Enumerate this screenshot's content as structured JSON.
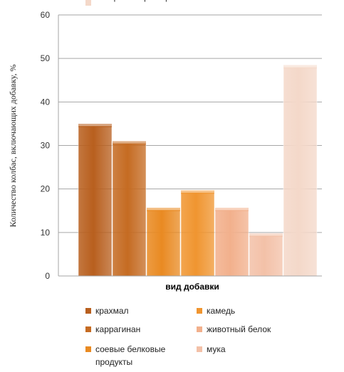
{
  "chart_data": {
    "type": "bar",
    "xlabel": "вид добавки",
    "ylabel": "Количество колбас, включающих добавку, %",
    "ylim": [
      0,
      60
    ],
    "yticks": [
      0,
      10,
      20,
      30,
      40,
      50,
      60
    ],
    "grid": true,
    "legend_position": "bottom",
    "series": [
      {
        "name": "крахмал",
        "value": 34.5,
        "color": "#b85f1e"
      },
      {
        "name": "каррагинан",
        "value": 30.5,
        "color": "#c56b22"
      },
      {
        "name": "соевые белковые продукты",
        "value": 15.2,
        "color": "#e98a22"
      },
      {
        "name": "камедь",
        "value": 19.2,
        "color": "#f09530"
      },
      {
        "name": "животный белок",
        "value": 15.2,
        "color": "#f2b08c"
      },
      {
        "name": "мука",
        "value": 9.3,
        "color": "#f3c1a8"
      },
      {
        "name": "без фальсификации",
        "value": 48,
        "color": "#f4d8c9"
      }
    ],
    "legend_order": [
      "крахмал",
      "камедь",
      "каррагинан",
      "животный белок",
      "соевые белковые продукты",
      "мука",
      "без фальсификации"
    ]
  }
}
